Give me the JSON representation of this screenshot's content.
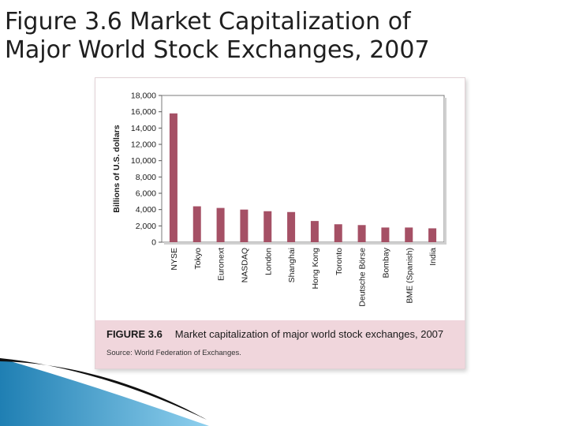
{
  "slide": {
    "title": "Figure 3.6 Market Capitalization of\nMajor World Stock Exchanges, 2007"
  },
  "caption": {
    "label": "FIGURE 3.6",
    "text": "Market capitalization of major world stock exchanges, 2007",
    "source": "Source: World Federation of Exchanges."
  },
  "colors": {
    "bar": "#a55065",
    "caption_band": "#f0d6dc",
    "swoosh_blue": "#2f8fc0",
    "swoosh_dark": "#111111"
  },
  "chart_data": {
    "type": "bar",
    "title": "",
    "xlabel": "",
    "ylabel": "Billions of U.S. dollars",
    "categories": [
      "NYSE",
      "Tokyo",
      "Euronext",
      "NASDAQ",
      "London",
      "Shanghai",
      "Hong Kong",
      "Toronto",
      "Deutsche Börse",
      "Bombay",
      "BME (Spanish)",
      "India"
    ],
    "values": [
      15800,
      4400,
      4200,
      4000,
      3800,
      3700,
      2600,
      2200,
      2100,
      1800,
      1800,
      1700
    ],
    "ylim": [
      0,
      18000
    ],
    "yticks": [
      0,
      2000,
      4000,
      6000,
      8000,
      10000,
      12000,
      14000,
      16000,
      18000
    ],
    "ytick_labels": [
      "0",
      "2,000",
      "4,000",
      "6,000",
      "8,000",
      "10,000",
      "12,000",
      "14,000",
      "16,000",
      "18,000"
    ],
    "grid": false
  }
}
